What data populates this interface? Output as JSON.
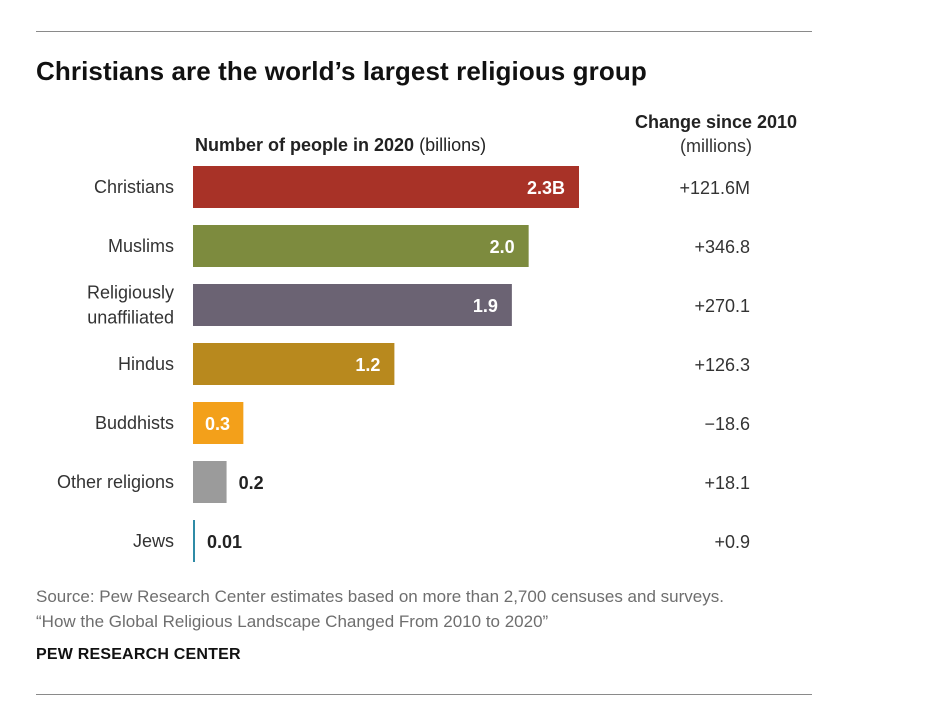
{
  "chart_data": {
    "type": "bar",
    "orientation": "horizontal",
    "title": "Christians are the world’s largest religious group",
    "subtitle_bold": "Number of people in 2020",
    "subtitle_unit": "(billions)",
    "change_header": "Change since 2010",
    "change_unit": "(millions)",
    "categories": [
      [
        "Christians"
      ],
      [
        "Muslims"
      ],
      [
        "Religiously",
        "unaffiliated"
      ],
      [
        "Hindus"
      ],
      [
        "Buddhists"
      ],
      [
        "Other religions"
      ],
      [
        "Jews"
      ]
    ],
    "values": [
      2.3,
      2.0,
      1.9,
      1.2,
      0.3,
      0.2,
      0.01
    ],
    "value_labels": [
      "2.3B",
      "2.0",
      "1.9",
      "1.2",
      "0.3",
      "0.2",
      "0.01"
    ],
    "changes": [
      "+121.6M",
      "+346.8",
      "+270.1",
      "+126.3",
      "−18.6",
      "+18.1",
      "+0.9"
    ],
    "colors": [
      "#a83227",
      "#7d8b3e",
      "#6b6373",
      "#b8891e",
      "#f3a01a",
      "#9b9b9b",
      "#2f8ba6"
    ],
    "xlim": [
      0,
      2.3
    ],
    "grid": false,
    "legend": "none"
  },
  "source": {
    "line1": "Source: Pew Research Center estimates based on more than 2,700 censuses and surveys.",
    "line2": "“How the Global Religious Landscape Changed From 2010 to 2020”"
  },
  "brand": "PEW RESEARCH CENTER"
}
